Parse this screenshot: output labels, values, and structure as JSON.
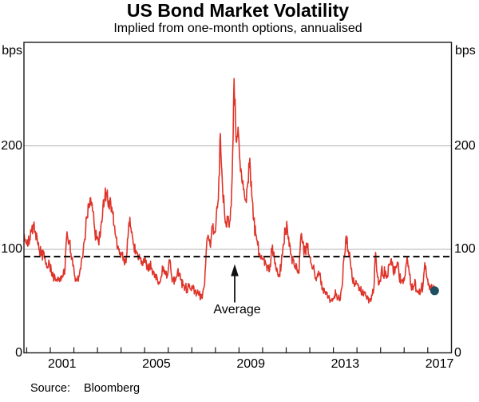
{
  "title": "US Bond Market Volatility",
  "subtitle": "Implied from one-month options, annualised",
  "axes": {
    "left_unit": "bps",
    "right_unit": "bps",
    "y_tick_labels": [
      "0",
      "100",
      "200"
    ],
    "x_tick_labels": [
      "2001",
      "2005",
      "2009",
      "2013",
      "2017"
    ]
  },
  "source": {
    "prefix": "Source:",
    "text": "Bloomberg"
  },
  "colors": {
    "series_red": "#df342a",
    "latest_dot": "#1f4f61",
    "grid": "#b0b0b0",
    "frame": "#1a1a1a",
    "annotation_black": "#111111"
  },
  "chart_data": {
    "type": "line",
    "title": "US Bond Market Volatility",
    "subtitle": "Implied from one-month options, annualised",
    "unit": "bps",
    "ylim": [
      0,
      300
    ],
    "y_ticks": [
      0,
      100,
      200
    ],
    "x_minor_tick_years": [
      2000,
      2001,
      2002,
      2003,
      2004,
      2005,
      2006,
      2007,
      2008,
      2009,
      2010,
      2011,
      2012,
      2013,
      2014,
      2015,
      2016,
      2017
    ],
    "x_labeled_years": [
      2001,
      2005,
      2009,
      2013,
      2017
    ],
    "grid": "horizontal-only",
    "average_line": {
      "value": 93,
      "style": "dashed",
      "label": "Average"
    },
    "series": [
      {
        "name": "US bond market implied volatility (one-month options, annualised)",
        "color": "#df342a",
        "frequency": "monthly",
        "start_year": 1999,
        "start_month": 11,
        "values": [
          112,
          107,
          103,
          109,
          117,
          123,
          117,
          107,
          99,
          94,
          97,
          88,
          82,
          86,
          79,
          74,
          71,
          69,
          72,
          70,
          74,
          82,
          117,
          107,
          96,
          84,
          74,
          70,
          74,
          81,
          92,
          110,
          130,
          144,
          150,
          137,
          121,
          111,
          107,
          114,
          131,
          148,
          155,
          141,
          150,
          137,
          123,
          111,
          103,
          97,
          95,
          89,
          87,
          111,
          131,
          117,
          104,
          97,
          94,
          91,
          89,
          91,
          87,
          83,
          86,
          81,
          79,
          76,
          71,
          67,
          74,
          83,
          78,
          74,
          90,
          77,
          71,
          69,
          74,
          77,
          71,
          65,
          63,
          61,
          64,
          61,
          62,
          60,
          58,
          56,
          53,
          57,
          66,
          104,
          112,
          102,
          122,
          116,
          135,
          148,
          212,
          165,
          140,
          122,
          132,
          128,
          170,
          265,
          205,
          218,
          185,
          165,
          158,
          148,
          165,
          188,
          152,
          128,
          115,
          104,
          96,
          94,
          91,
          87,
          83,
          79,
          101,
          95,
          87,
          79,
          75,
          85,
          105,
          120,
          122,
          103,
          95,
          90,
          84,
          80,
          77,
          114,
          106,
          97,
          103,
          95,
          87,
          81,
          77,
          73,
          79,
          71,
          63,
          59,
          57,
          54,
          51,
          50,
          55,
          57,
          53,
          51,
          65,
          94,
          113,
          99,
          91,
          73,
          67,
          70,
          65,
          61,
          59,
          57,
          55,
          53,
          52,
          56,
          61,
          97,
          73,
          69,
          81,
          75,
          79,
          73,
          85,
          91,
          77,
          83,
          87,
          73,
          69,
          67,
          75,
          93,
          79,
          65,
          61,
          71,
          59,
          57,
          61,
          63,
          87,
          73,
          67,
          62,
          62,
          60
        ]
      }
    ],
    "latest_observation": {
      "year_decimal": 2017.29,
      "value": 60,
      "marker": "dot",
      "color": "#1f4f61"
    },
    "render_hints": {
      "substeps": 4,
      "noise_base": 2.5,
      "noise_scale": 0.05,
      "legend": "none"
    }
  }
}
